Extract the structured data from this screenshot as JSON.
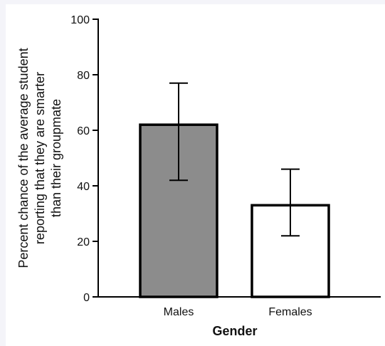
{
  "chart_data": {
    "type": "bar",
    "categories": [
      "Males",
      "Females"
    ],
    "values": [
      62,
      33
    ],
    "error_bars": [
      {
        "low": 42,
        "high": 77
      },
      {
        "low": 22,
        "high": 46
      }
    ],
    "bar_colors": [
      "#8c8c8c",
      "#ffffff"
    ],
    "xlabel": "Gender",
    "ylabel_lines": [
      "Percent chance of the average student",
      "reporting that they are smarter",
      "than their groupmate"
    ],
    "ylim": [
      0,
      100
    ],
    "yticks": [
      0,
      20,
      40,
      60,
      80,
      100
    ],
    "grid": false
  }
}
